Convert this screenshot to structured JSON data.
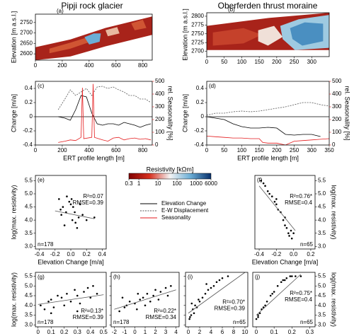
{
  "column_titles": [
    "Pipji rock glacier",
    "Oberferden thrust moraine"
  ],
  "legend": [
    {
      "name": "Elevation Change",
      "color": "#000000",
      "dash": false
    },
    {
      "name": "E-W Displacement",
      "color": "#555555",
      "dash": true
    },
    {
      "name": "Seasonality",
      "color": "#e41a1c",
      "dash": false
    }
  ],
  "colorbar": {
    "title": "Resistivity [kΩm]",
    "lim": [
      0.3,
      6000
    ],
    "ticks": [
      0.3,
      1,
      10,
      100,
      1000,
      6000
    ],
    "log": true,
    "colors": [
      "#7f0000",
      "#d7301f",
      "#f4f4f4",
      "#6baed6",
      "#08306b"
    ]
  },
  "chart_data": [
    {
      "type": "section",
      "label": "(a)",
      "ylabel": "Elevation [m a.s.l.]",
      "xlim": [
        0,
        870
      ],
      "xticks": [
        0,
        200,
        400,
        600,
        800
      ],
      "ylim": [
        2570,
        2790
      ],
      "yticks": [
        2600,
        2650,
        2700,
        2750
      ]
    },
    {
      "type": "section",
      "label": "(b)",
      "ylabel": "Elevation [m a.s.l.]",
      "xlim": [
        0,
        350
      ],
      "xticks": [
        0,
        50,
        100,
        150,
        200,
        250,
        300
      ],
      "ylim": [
        2685,
        2810
      ],
      "yticks": [
        2700,
        2725,
        2750,
        2775,
        2800
      ]
    },
    {
      "type": "line",
      "label": "(c)",
      "xlabel": "ERT profile length [m]",
      "ylabel": "Change [m/a]",
      "y2label": "rel. Seasonality [%]",
      "xlim": [
        0,
        870
      ],
      "xticks": [
        0,
        200,
        400,
        600,
        800
      ],
      "ylim": [
        -0.4,
        0.5
      ],
      "yticks": [
        -0.4,
        -0.2,
        0,
        0.2,
        0.4
      ],
      "y2lim": [
        0,
        500
      ],
      "y2ticks": [
        0,
        100,
        200,
        300,
        400,
        500
      ],
      "series": [
        {
          "color": "#555555",
          "dash": true,
          "x": [
            170,
            220,
            260,
            300,
            340,
            380,
            420,
            460,
            500,
            540,
            580,
            620,
            660,
            700,
            740,
            780,
            820,
            860
          ],
          "values": [
            0.1,
            0.25,
            0.38,
            0.3,
            0.35,
            0.4,
            0.3,
            0.42,
            0.43,
            0.4,
            0.42,
            0.38,
            0.35,
            0.3,
            0.3,
            0.25,
            0.25,
            0.2
          ]
        },
        {
          "color": "#000000",
          "dash": false,
          "x": [
            170,
            220,
            260,
            300,
            340,
            380,
            420,
            460,
            500,
            540,
            580,
            620,
            660,
            700,
            740,
            780,
            820,
            860
          ],
          "values": [
            0.0,
            -0.02,
            -0.05,
            0.1,
            0.3,
            0.28,
            0.05,
            -0.1,
            -0.12,
            -0.1,
            -0.1,
            -0.12,
            -0.08,
            -0.1,
            -0.12,
            -0.15,
            -0.12,
            -0.1
          ]
        },
        {
          "color": "#e41a1c",
          "dash": false,
          "axis": "y2",
          "x": [
            170,
            220,
            260,
            300,
            340,
            350,
            360,
            420,
            430,
            440,
            500,
            540,
            580,
            620,
            660,
            700,
            740,
            780,
            820,
            860
          ],
          "values": [
            20,
            30,
            40,
            35,
            60,
            450,
            50,
            60,
            480,
            60,
            40,
            30,
            55,
            60,
            40,
            50,
            55,
            45,
            50,
            40
          ]
        }
      ]
    },
    {
      "type": "line",
      "label": "(d)",
      "xlabel": "ERT profile length [m]",
      "ylabel": "Change [m/a]",
      "y2label": "rel. Seasonality [%]",
      "xlim": [
        0,
        350
      ],
      "xticks": [
        0,
        50,
        100,
        150,
        200,
        250,
        300,
        350
      ],
      "ylim": [
        -0.4,
        0.5
      ],
      "yticks": [
        -0.4,
        -0.2,
        0,
        0.2,
        0.4
      ],
      "y2lim": [
        0,
        500
      ],
      "y2ticks": [
        0,
        100,
        200,
        300,
        400,
        500
      ],
      "series": [
        {
          "color": "#555555",
          "dash": true,
          "x": [
            0,
            25,
            50,
            75,
            100,
            125,
            150,
            175,
            200,
            225,
            250,
            275,
            300,
            325,
            350
          ],
          "values": [
            0.02,
            0.05,
            0.05,
            0.07,
            0.08,
            0.07,
            0.08,
            0.1,
            0.12,
            0.14,
            0.17,
            0.2,
            0.2,
            0.17,
            0.15
          ]
        },
        {
          "color": "#000000",
          "dash": false,
          "x": [
            0,
            25,
            50,
            75,
            100,
            125,
            150,
            175,
            200,
            225,
            250,
            275,
            300,
            325
          ],
          "values": [
            0,
            -0.02,
            -0.04,
            -0.1,
            -0.14,
            -0.16,
            -0.16,
            -0.15,
            -0.16,
            -0.25,
            -0.26,
            -0.25,
            -0.25,
            -0.28
          ]
        },
        {
          "color": "#e41a1c",
          "dash": false,
          "axis": "y2",
          "x": [
            0,
            25,
            50,
            75,
            100,
            125,
            150,
            160,
            175,
            200,
            225,
            250,
            275,
            300,
            325,
            350
          ],
          "values": [
            70,
            65,
            60,
            55,
            55,
            50,
            50,
            20,
            15,
            15,
            0,
            30,
            35,
            40,
            45,
            50
          ]
        }
      ]
    },
    {
      "type": "scatter",
      "label": "(e)",
      "xlabel": "Elevation Change [m/a]",
      "ylabel": "log(max. resistivity)",
      "stats": [
        "R²=0.07",
        "RMSE=0.39"
      ],
      "n": "n=178",
      "xlim": [
        -0.45,
        0.45
      ],
      "xticks": [
        -0.4,
        -0.2,
        {
          "value": 0,
          "label": "0.0"
        },
        0.2,
        0.4
      ],
      "ylim": [
        2.9,
        5.7
      ],
      "yticks": [
        {
          "value": 3,
          "label": "3.0"
        },
        3.5,
        {
          "value": 4,
          "label": "4.0"
        },
        4.5,
        {
          "value": 5,
          "label": "5.0"
        },
        5.5
      ],
      "x": [
        -0.15,
        -0.1,
        -0.12,
        -0.05,
        0,
        0.02,
        -0.08,
        0.05,
        0.1,
        -0.02,
        0.08,
        0.15,
        0.2,
        0.3,
        -0.13,
        0.03,
        0.06,
        -0.06,
        0.12,
        0.01
      ],
      "values": [
        4.8,
        4.5,
        4.2,
        4.9,
        4.6,
        4.0,
        3.8,
        4.3,
        4.1,
        4.7,
        3.7,
        4.2,
        4.0,
        4.1,
        4.4,
        4.5,
        3.9,
        4.3,
        4.6,
        4.8
      ],
      "fit": {
        "x": [
          -0.2,
          0.3
        ],
        "y": [
          4.35,
          4.05
        ]
      }
    },
    {
      "type": "scatter",
      "label": "(f)",
      "xlabel": "Elevation Change [m/a]",
      "ylabel": "log(max. resistivity)",
      "stats": [
        "R²=0.76*",
        "RMSE=0.4"
      ],
      "n": "n=65",
      "xlim": [
        -0.45,
        0.25
      ],
      "xticks": [
        -0.4,
        -0.2,
        {
          "value": 0,
          "label": "0.0"
        },
        0.2
      ],
      "ylim": [
        2.9,
        5.7
      ],
      "yticks": [
        {
          "value": 3,
          "label": "3.0"
        },
        3.5,
        {
          "value": 4,
          "label": "4.0"
        },
        4.5,
        {
          "value": 5,
          "label": "5.0"
        },
        5.5
      ],
      "x": [
        -0.38,
        -0.35,
        -0.33,
        -0.3,
        -0.28,
        -0.25,
        -0.22,
        -0.2,
        -0.18,
        -0.15,
        -0.12,
        -0.1,
        -0.08,
        -0.06,
        -0.05,
        -0.03,
        -0.02,
        0,
        -0.1,
        -0.2
      ],
      "values": [
        5.5,
        5.4,
        5.3,
        5.1,
        5.0,
        4.9,
        4.7,
        4.6,
        4.4,
        4.3,
        4.0,
        3.8,
        3.7,
        3.5,
        3.4,
        3.6,
        3.3,
        3.5,
        4.1,
        4.8
      ],
      "fit": {
        "x": [
          -0.4,
          0.02
        ],
        "y": [
          5.3,
          3.6
        ]
      }
    },
    {
      "type": "scatter",
      "label": "(g)",
      "xlabel": "E-W Displacement [m/a]",
      "ylabel": "log(max. resistivity)",
      "stats": [
        "R²=0.13*",
        "RMSE=0.39"
      ],
      "n": "n=178",
      "xlim": [
        -0.02,
        0.52
      ],
      "xticks": [
        0,
        0.1,
        0.2,
        0.3,
        0.4,
        0.5
      ],
      "ylim": [
        2.9,
        5.7
      ],
      "yticks": [
        {
          "value": 3,
          "label": "3.0"
        },
        3.5,
        {
          "value": 4,
          "label": "4.0"
        },
        4.5,
        {
          "value": 5,
          "label": "5.0"
        },
        5.5
      ],
      "x": [
        0.02,
        0.05,
        0.08,
        0.1,
        0.12,
        0.15,
        0.18,
        0.2,
        0.22,
        0.25,
        0.28,
        0.3,
        0.32,
        0.35,
        0.38,
        0.4,
        0.42,
        0.45,
        0.1,
        0.3
      ],
      "values": [
        4.0,
        3.8,
        4.2,
        4.3,
        3.9,
        4.5,
        4.4,
        4.0,
        4.6,
        4.2,
        4.8,
        4.5,
        4.1,
        4.7,
        4.9,
        4.4,
        5.0,
        4.6,
        3.6,
        3.7
      ],
      "fit": {
        "x": [
          0,
          0.5
        ],
        "y": [
          4.05,
          4.55
        ]
      }
    },
    {
      "type": "scatter",
      "label": "(h)",
      "xlabel": "Seasonality [mm/6d]",
      "stats": [
        "R²=0.22*",
        "RMSE=0.34"
      ],
      "n": "n=178",
      "xlim": [
        -2.3,
        4.3
      ],
      "xticks": [
        -2,
        -1,
        0,
        1,
        2,
        3,
        4
      ],
      "ylim": [
        2.9,
        5.7
      ],
      "yticks": [
        {
          "value": 3,
          "label": "3.0"
        },
        3.5,
        {
          "value": 4,
          "label": "4.0"
        },
        4.5,
        {
          "value": 5,
          "label": "5.0"
        },
        5.5
      ],
      "x": [
        -1.5,
        -1,
        -0.8,
        -0.5,
        0,
        0.2,
        0.5,
        0.8,
        1,
        1.2,
        1.5,
        1.8,
        2,
        2.3,
        2.5,
        3,
        3.2,
        3.5,
        -1.2,
        0.3
      ],
      "values": [
        3.7,
        3.9,
        4.0,
        4.2,
        4.1,
        3.8,
        4.3,
        4.4,
        4.0,
        4.6,
        4.2,
        4.5,
        4.8,
        4.3,
        4.7,
        4.9,
        4.5,
        5.0,
        4.4,
        4.6
      ],
      "fit": {
        "x": [
          -2,
          4
        ],
        "y": [
          3.8,
          4.8
        ]
      }
    },
    {
      "type": "scatter",
      "label": "(i)",
      "xlabel": "Seasonality [mm/6d]",
      "stats": [
        "R²=0.70*",
        "RMSE=0.39"
      ],
      "n": "n=65",
      "xlim": [
        -0.5,
        10.5
      ],
      "xticks": [
        0,
        2,
        4,
        6,
        8,
        10
      ],
      "ylim": [
        2.9,
        5.7
      ],
      "yticks": [
        {
          "value": 3,
          "label": "3.0"
        },
        3.5,
        {
          "value": 4,
          "label": "4.0"
        },
        4.5,
        {
          "value": 5,
          "label": "5.0"
        },
        5.5
      ],
      "x": [
        0.2,
        0.5,
        0.8,
        1,
        1.2,
        1.5,
        2,
        2.5,
        3,
        3.5,
        4,
        4.5,
        5,
        5.5,
        6,
        7,
        0.3,
        0.6,
        1.8,
        3.2
      ],
      "values": [
        3.3,
        3.5,
        3.8,
        3.6,
        4.0,
        3.9,
        4.2,
        4.4,
        4.6,
        4.8,
        4.9,
        5.0,
        5.2,
        5.3,
        5.4,
        5.5,
        3.4,
        4.1,
        4.3,
        5.1
      ],
      "fit": {
        "x": [
          0,
          10
        ],
        "y": [
          3.6,
          5.7
        ]
      }
    },
    {
      "type": "scatter",
      "label": "(j)",
      "xlabel": "E-W Displacement [m/a]",
      "ylabel": "log(max. resistivity)",
      "stats": [
        "R²=0.75*",
        "RMSE=0.4"
      ],
      "n": "n=65",
      "xlim": [
        -0.02,
        0.33
      ],
      "xticks": [
        0,
        0.1,
        0.2,
        0.3
      ],
      "ylim": [
        2.9,
        5.7
      ],
      "yticks": [
        {
          "value": 3,
          "label": "3.0"
        },
        3.5,
        {
          "value": 4,
          "label": "4.0"
        },
        4.5,
        {
          "value": 5,
          "label": "5.0"
        },
        5.5
      ],
      "x": [
        0.0,
        0.01,
        0.02,
        0.03,
        0.05,
        0.06,
        0.08,
        0.1,
        0.12,
        0.14,
        0.15,
        0.17,
        0.19,
        0.2,
        0.22,
        0.25,
        0.01,
        0.04,
        0.09,
        0.16
      ],
      "values": [
        3.3,
        3.5,
        3.6,
        3.8,
        4.0,
        4.2,
        4.5,
        4.7,
        5.0,
        5.2,
        5.3,
        5.4,
        5.5,
        5.5,
        5.5,
        5.5,
        3.4,
        3.9,
        4.6,
        5.3
      ],
      "fit": {
        "x": [
          0,
          0.25
        ],
        "y": [
          3.5,
          5.6
        ]
      }
    }
  ]
}
